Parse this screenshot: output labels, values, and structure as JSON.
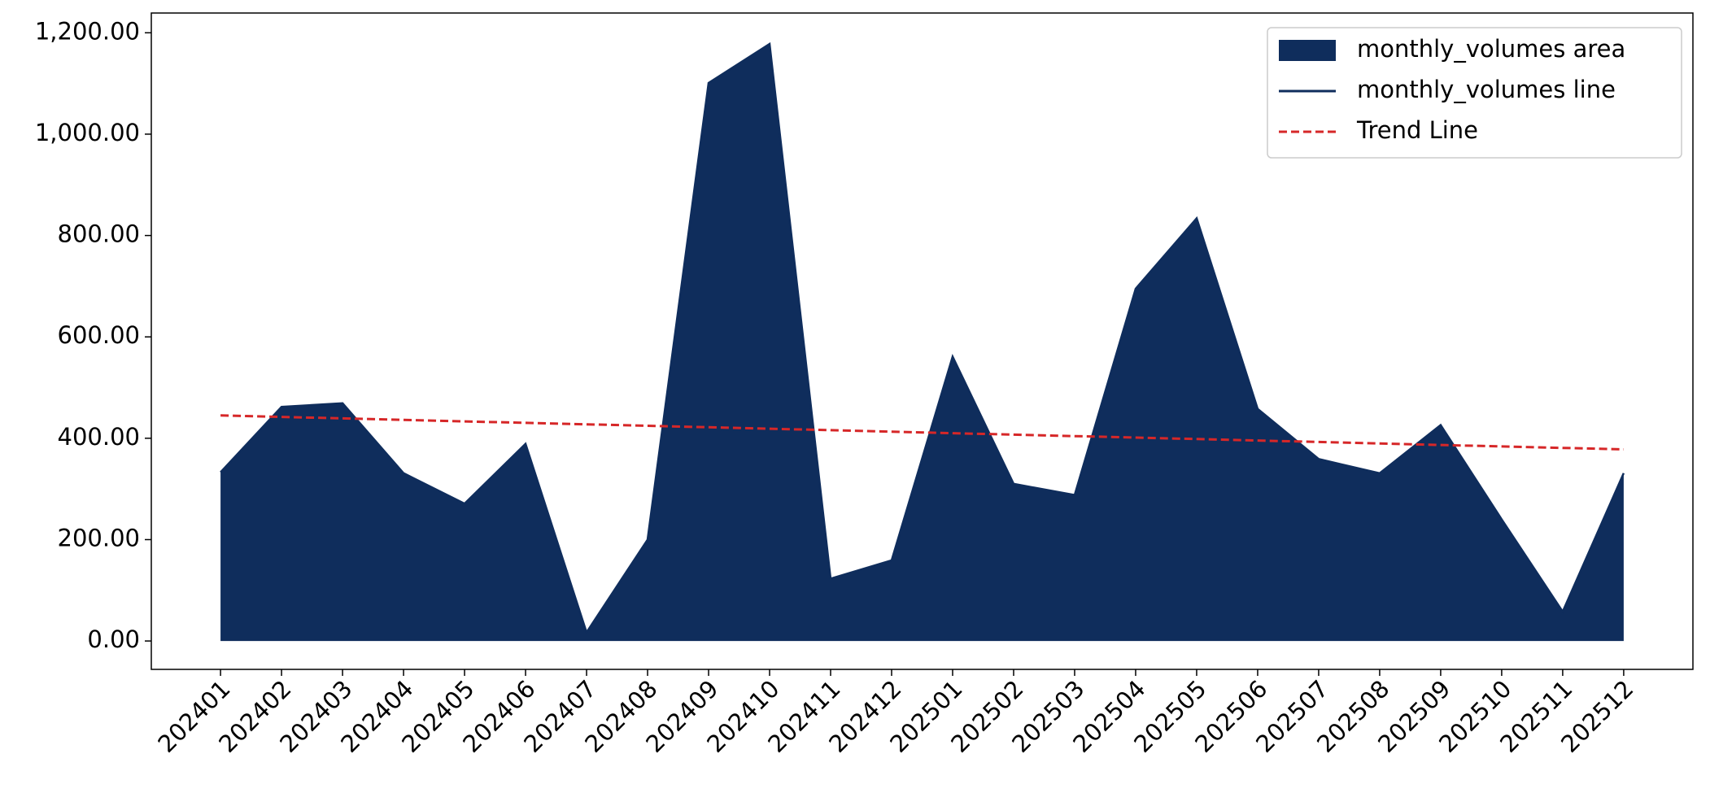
{
  "chart_data": {
    "type": "area",
    "categories": [
      "202401",
      "202402",
      "202403",
      "202404",
      "202405",
      "202406",
      "202407",
      "202408",
      "202409",
      "202410",
      "202411",
      "202412",
      "202501",
      "202502",
      "202503",
      "202504",
      "202505",
      "202506",
      "202507",
      "202508",
      "202509",
      "202510",
      "202511",
      "202512"
    ],
    "series": [
      {
        "name": "monthly_volumes area",
        "kind": "area",
        "color": "#0f2d5c",
        "values": [
          333,
          462,
          469,
          331,
          271,
          389,
          17,
          200,
          1101,
          1178,
          123,
          159,
          561,
          310,
          288,
          695,
          834,
          458,
          359,
          331,
          426,
          240,
          58,
          331
        ]
      },
      {
        "name": "monthly_volumes line",
        "kind": "line",
        "color": "#0f2d5c",
        "values": [
          333,
          462,
          469,
          331,
          271,
          389,
          17,
          200,
          1101,
          1178,
          123,
          159,
          561,
          310,
          288,
          695,
          834,
          458,
          359,
          331,
          426,
          240,
          58,
          331
        ]
      },
      {
        "name": "Trend Line",
        "kind": "dashed",
        "color": "#d62728",
        "values": [
          445,
          442.1,
          439.2,
          436.3,
          433.3,
          430.4,
          427.5,
          424.6,
          421.7,
          418.8,
          415.9,
          413.0,
          410.0,
          407.1,
          404.2,
          401.3,
          398.4,
          395.5,
          392.6,
          389.7,
          386.7,
          383.8,
          380.9,
          378
        ]
      }
    ],
    "ylim": [
      -56,
      1239
    ],
    "yticks": [
      {
        "value": 0,
        "label": "0.00"
      },
      {
        "value": 200,
        "label": "200.00"
      },
      {
        "value": 400,
        "label": "400.00"
      },
      {
        "value": 600,
        "label": "600.00"
      },
      {
        "value": 800,
        "label": "800.00"
      },
      {
        "value": 1000,
        "label": "1,000.00"
      },
      {
        "value": 1200,
        "label": "1,200.00"
      }
    ],
    "legend": "upper right",
    "grid": false
  }
}
